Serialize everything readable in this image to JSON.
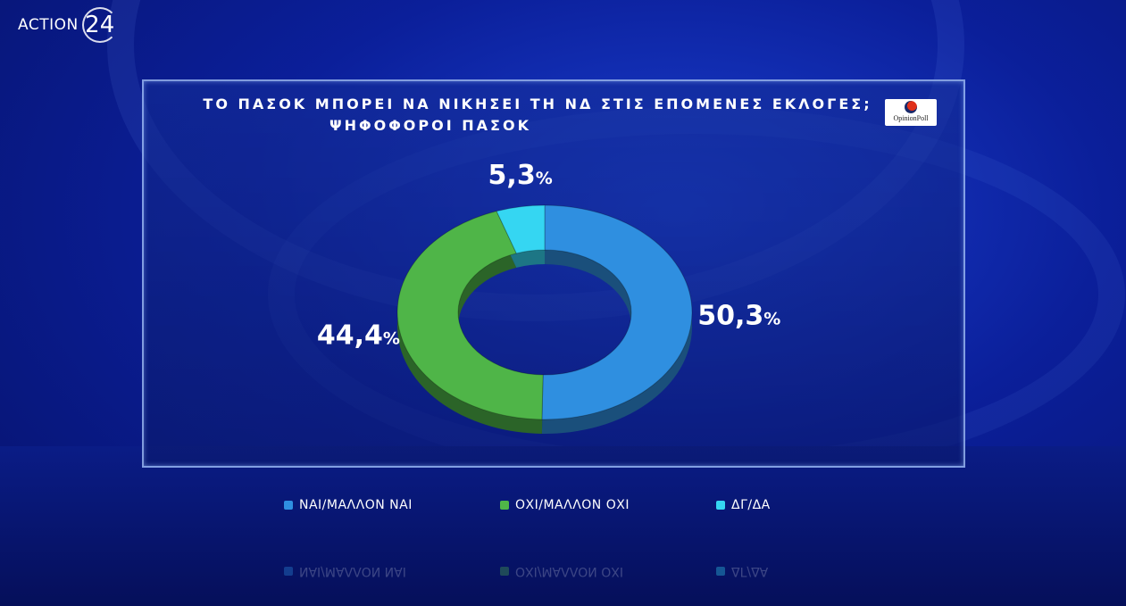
{
  "logo": {
    "brand": "ACTION",
    "number": "24"
  },
  "badge": {
    "label": "OpinionPoll"
  },
  "chart_data": {
    "type": "pie",
    "title": "ΤΟ ΠΑΣΟΚ ΜΠΟΡΕΙ ΝΑ ΝΙΚΗΣΕΙ ΤΗ ΝΔ ΣΤΙΣ ΕΠΟΜΕΝΕΣ ΕΚΛΟΓΕΣ;",
    "subtitle": "ΨΗΦΟΦΟΡΟΙ ΠΑΣΟΚ",
    "donut": true,
    "categories": [
      "ΝΑΙ/ΜΑΛΛΟΝ ΝΑΙ",
      "ΟΧΙ/ΜΑΛΛΟΝ ΟΧΙ",
      "ΔΓ/ΔΑ"
    ],
    "values": [
      50.3,
      44.4,
      5.3
    ],
    "value_labels": [
      "50,3",
      "44,4",
      "5,3"
    ],
    "unit": "%",
    "colors": [
      "#2f8fe0",
      "#4fb548",
      "#35d6f2"
    ],
    "legend": "bottom"
  }
}
